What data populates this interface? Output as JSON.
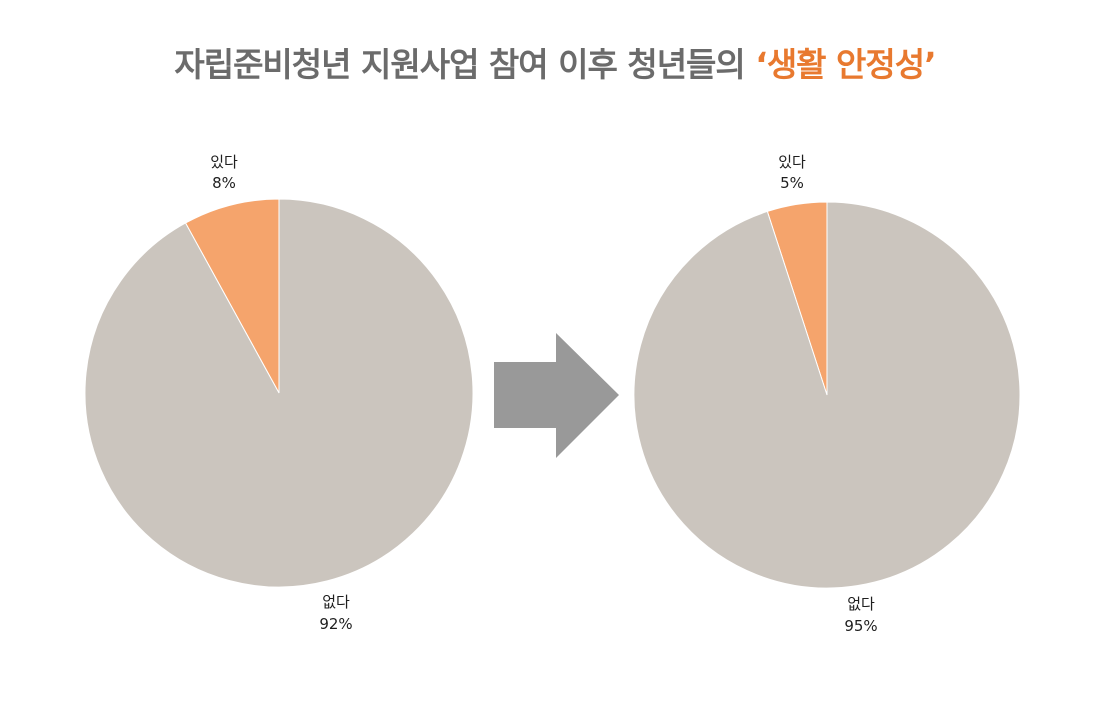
{
  "title": {
    "main": "자립준비청년 지원사업 참여 이후 청년들의",
    "highlight": "‘생활 안정성’"
  },
  "colors": {
    "title_text": "#6b6b6b",
    "title_highlight": "#e8792f",
    "slice_yes": "#f5a46c",
    "slice_no": "#cbc5be",
    "arrow": "#999999"
  },
  "arrow_icon": "right-arrow-icon",
  "chart_data": [
    {
      "type": "pie",
      "slices": [
        {
          "label": "있다",
          "value": 8,
          "value_label": "8%"
        },
        {
          "label": "없다",
          "value": 92,
          "value_label": "92%"
        }
      ]
    },
    {
      "type": "pie",
      "slices": [
        {
          "label": "있다",
          "value": 5,
          "value_label": "5%"
        },
        {
          "label": "없다",
          "value": 95,
          "value_label": "95%"
        }
      ]
    }
  ]
}
